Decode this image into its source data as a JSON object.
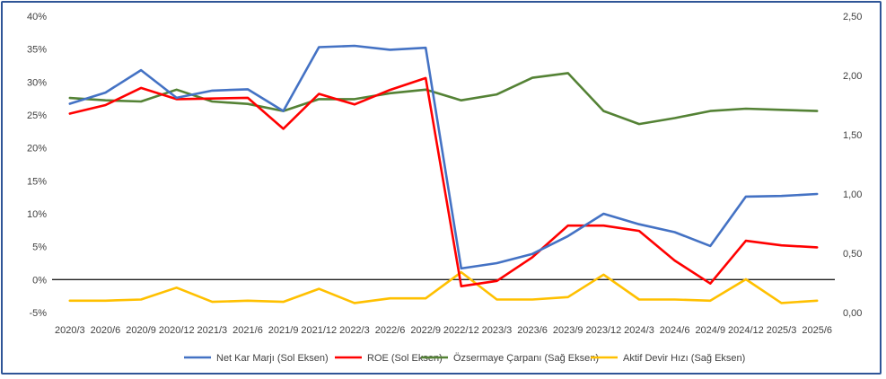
{
  "chart_data": {
    "type": "line",
    "categories": [
      "2020/3",
      "2020/6",
      "2020/9",
      "2020/12",
      "2021/3",
      "2021/6",
      "2021/9",
      "2021/12",
      "2022/3",
      "2022/6",
      "2022/9",
      "2022/12",
      "2023/3",
      "2023/6",
      "2023/9",
      "2023/12",
      "2024/3",
      "2024/6",
      "2024/9",
      "2024/12",
      "2025/3",
      "2025/6"
    ],
    "y_left": {
      "ylim": [
        -5,
        40
      ],
      "ticks": [
        -5,
        0,
        5,
        10,
        15,
        20,
        25,
        30,
        35,
        40
      ],
      "tick_labels": [
        "-5%",
        "0%",
        "5%",
        "10%",
        "15%",
        "20%",
        "25%",
        "30%",
        "35%",
        "40%"
      ]
    },
    "y_right": {
      "ylim": [
        0,
        2.5
      ],
      "ticks": [
        0,
        0.5,
        1.0,
        1.5,
        2.0,
        2.5
      ],
      "tick_labels": [
        "0,00",
        "0,50",
        "1,00",
        "1,50",
        "2,00",
        "2,50"
      ]
    },
    "grid": false,
    "legend_position": "bottom",
    "series": [
      {
        "name": "Net Kar Marjı (Sol Eksen)",
        "axis": "left",
        "color": "#4472c4",
        "values": [
          26.7,
          28.4,
          31.8,
          27.6,
          28.7,
          28.9,
          25.6,
          35.3,
          35.5,
          34.9,
          35.2,
          1.7,
          2.5,
          3.9,
          6.6,
          10.0,
          8.4,
          7.2,
          5.1,
          12.6,
          12.7,
          13.0
        ]
      },
      {
        "name": "ROE (Sol Eksen)",
        "axis": "left",
        "color": "#ff0000",
        "values": [
          25.2,
          26.5,
          29.1,
          27.4,
          27.5,
          27.6,
          22.9,
          28.2,
          26.6,
          28.8,
          30.6,
          -1.0,
          -0.2,
          3.4,
          8.2,
          8.2,
          7.4,
          2.9,
          -0.6,
          5.9,
          5.2,
          4.9
        ]
      },
      {
        "name": "Özsermaye Çarpanı (Sağ Eksen)",
        "axis": "right",
        "color": "#548235",
        "values": [
          1.81,
          1.79,
          1.78,
          1.88,
          1.78,
          1.76,
          1.7,
          1.8,
          1.8,
          1.85,
          1.88,
          1.79,
          1.84,
          1.98,
          2.02,
          1.7,
          1.59,
          1.64,
          1.7,
          1.72,
          1.71,
          1.7
        ]
      },
      {
        "name": "Aktif Devir Hızı (Sağ Eksen)",
        "axis": "right",
        "color": "#ffc000",
        "values": [
          0.1,
          0.1,
          0.11,
          0.21,
          0.09,
          0.1,
          0.09,
          0.2,
          0.08,
          0.12,
          0.12,
          0.34,
          0.11,
          0.11,
          0.13,
          0.32,
          0.11,
          0.11,
          0.1,
          0.28,
          0.08,
          0.1
        ]
      }
    ]
  }
}
